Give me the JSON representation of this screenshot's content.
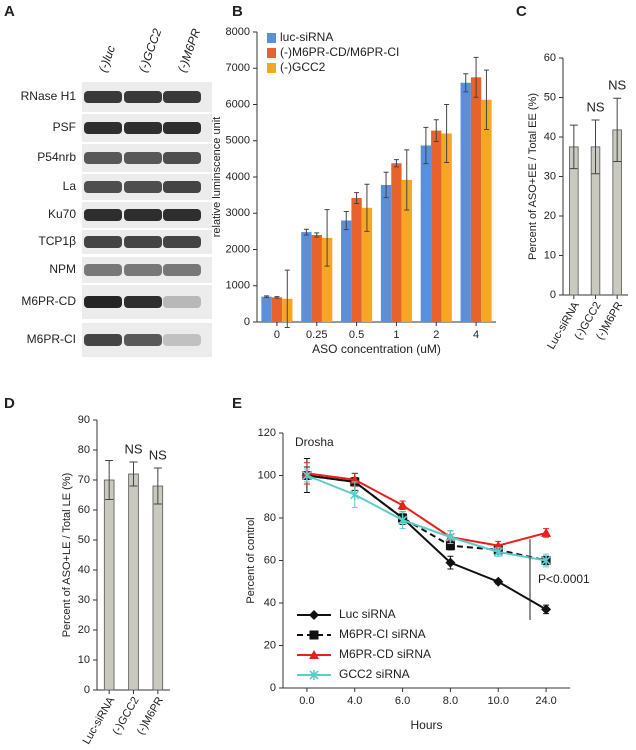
{
  "blot": {
    "panel_label": "A",
    "lanes": [
      "(-)luc",
      "(-)GCC2",
      "(-)M6PR"
    ],
    "rows": [
      "RNase H1",
      "PSF",
      "P54nrb",
      "La",
      "Ku70",
      "TCP1β",
      "NPM",
      "M6PR-CD",
      "M6PR-CI"
    ]
  },
  "chart_data": [
    {
      "type": "bar",
      "panel_label": "B",
      "xlabel": "ASO concentration (uM)",
      "ylabel": "relative luminscence unit",
      "categories": [
        "0",
        "0.25",
        "0.5",
        "1",
        "2",
        "4"
      ],
      "series": [
        {
          "name": "luc-siRNA",
          "color": "#5b8fd9",
          "values": [
            700,
            2480,
            2800,
            3780,
            4870,
            6600
          ],
          "errors": [
            20,
            80,
            250,
            350,
            500,
            250
          ]
        },
        {
          "name": "(-)M6PR-CD/M6PR-CI",
          "color": "#e8632b",
          "values": [
            680,
            2400,
            3420,
            4380,
            5280,
            6750
          ],
          "errors": [
            20,
            60,
            150,
            100,
            300,
            550
          ]
        },
        {
          "name": "(-)GCC2",
          "color": "#f5a623",
          "values": [
            640,
            2320,
            3150,
            3920,
            5200,
            6130
          ],
          "errors": [
            790,
            780,
            650,
            830,
            800,
            820
          ]
        }
      ],
      "ylim": [
        0,
        8000
      ],
      "yticks": [
        0,
        1000,
        2000,
        3000,
        4000,
        5000,
        6000,
        7000,
        8000
      ],
      "legend": "upper left"
    },
    {
      "type": "bar",
      "panel_label": "C",
      "ylabel": "Percent of ASO+EE / Total EE (%)",
      "categories": [
        "Luc-siRNA",
        "(-)GCC2",
        "(-)M6PR"
      ],
      "values": [
        37.5,
        37.5,
        41.8
      ],
      "errors": [
        5.5,
        6.8,
        8
      ],
      "annotations": [
        null,
        "NS",
        "NS"
      ],
      "color": "#c9c9c0",
      "ylim": [
        0,
        60
      ],
      "yticks": [
        0,
        10,
        20,
        30,
        40,
        50,
        60
      ]
    },
    {
      "type": "bar",
      "panel_label": "D",
      "ylabel": "Percent of ASO+LE / Total LE (%)",
      "categories": [
        "Luc-siRNA",
        "(-)GCC2",
        "(-)M6PR"
      ],
      "values": [
        70,
        72,
        68
      ],
      "errors": [
        6.5,
        4,
        6
      ],
      "annotations": [
        null,
        "NS",
        "NS"
      ],
      "color": "#c9c9c0",
      "ylim": [
        0,
        90
      ],
      "yticks": [
        0,
        10,
        20,
        30,
        40,
        50,
        60,
        70,
        80,
        90
      ]
    },
    {
      "type": "line",
      "panel_label": "E",
      "title": "Drosha",
      "annotation": "P<0.0001",
      "xlabel": "Hours",
      "ylabel": "Percent of control",
      "categories": [
        "0.0",
        "4.0",
        "6.0",
        "8.0",
        "10.0",
        "24.0"
      ],
      "series": [
        {
          "name": "Luc siRNA",
          "color": "#111111",
          "marker": "diamond",
          "dashed": false,
          "values": [
            100,
            97,
            80,
            59,
            50,
            37
          ],
          "errors": [
            8,
            4,
            3,
            3,
            1,
            2
          ]
        },
        {
          "name": "M6PR-CI siRNA",
          "color": "#111111",
          "marker": "square",
          "dashed": true,
          "values": [
            100,
            97,
            80,
            67,
            65,
            60
          ],
          "errors": [
            4,
            2,
            2,
            2,
            2,
            2
          ]
        },
        {
          "name": "M6PR-CD siRNA",
          "color": "#e8201c",
          "marker": "triangle",
          "dashed": false,
          "values": [
            101,
            98,
            86,
            71,
            67,
            73
          ],
          "errors": [
            5,
            3,
            2,
            3,
            2,
            2
          ]
        },
        {
          "name": "GCC2 siRNA",
          "color": "#5ecbcb",
          "marker": "x",
          "dashed": false,
          "values": [
            100,
            91,
            79,
            71,
            64,
            60
          ],
          "errors": [
            3,
            6,
            4,
            3,
            2,
            3
          ]
        }
      ],
      "ylim": [
        0,
        120
      ],
      "yticks": [
        0,
        20,
        40,
        60,
        80,
        100,
        120
      ],
      "legend": "lower left"
    }
  ]
}
